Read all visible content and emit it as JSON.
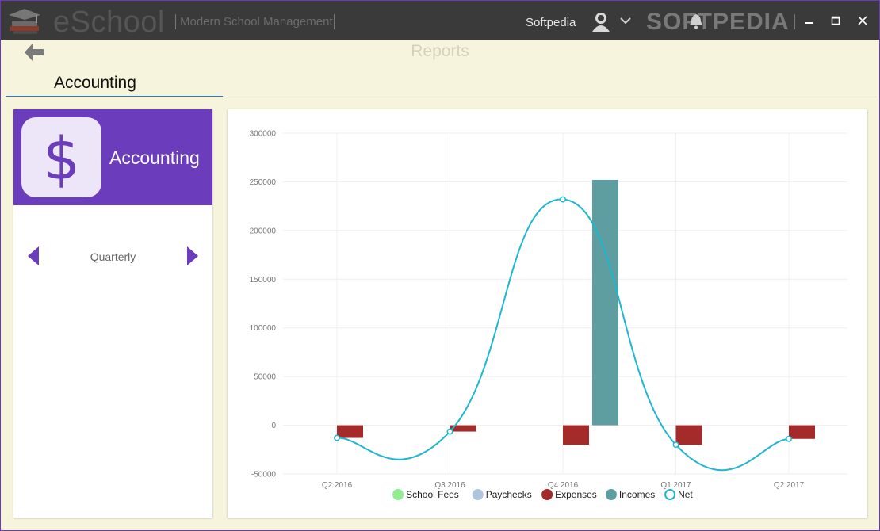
{
  "app": {
    "name": "eSchool",
    "subtitle": "Modern School Management",
    "user_name": "Softpedia",
    "watermark": "SOFTPEDIA"
  },
  "header": {
    "title": "Reports",
    "tab_label": "Accounting"
  },
  "card": {
    "title": "Accounting",
    "icon_glyph": "$",
    "period_label": "Quarterly"
  },
  "colors": {
    "accent": "#6b3cbc",
    "titlebar": "#3a3a3a",
    "tab_underline": "#2a7ac8",
    "school_fees": "#90ee90",
    "paychecks": "#b0c4de",
    "expenses": "#a52a2a",
    "incomes": "#5f9ea0",
    "net": "#1fb6d0"
  },
  "chart_data": {
    "type": "bar",
    "categories": [
      "Q2 2016",
      "Q3 2016",
      "Q4 2016",
      "Q1 2017",
      "Q2 2017"
    ],
    "ylim": [
      -50000,
      300000
    ],
    "yticks": [
      -50000,
      0,
      50000,
      100000,
      150000,
      200000,
      250000,
      300000
    ],
    "grid": true,
    "legend_position": "bottom",
    "series": [
      {
        "name": "School Fees",
        "type": "bar",
        "color": "#90ee90",
        "values": [
          0,
          0,
          0,
          0,
          0
        ]
      },
      {
        "name": "Paychecks",
        "type": "bar",
        "color": "#b0c4de",
        "values": [
          0,
          0,
          0,
          0,
          0
        ]
      },
      {
        "name": "Expenses",
        "type": "bar",
        "color": "#a52a2a",
        "values": [
          -13000,
          -6500,
          -20000,
          -20000,
          -14000
        ]
      },
      {
        "name": "Incomes",
        "type": "bar",
        "color": "#5f9ea0",
        "values": [
          0,
          0,
          252000,
          0,
          0
        ]
      },
      {
        "name": "Net",
        "type": "line",
        "color": "#1fb6d0",
        "values": [
          -13000,
          -6500,
          232000,
          -20000,
          -14000
        ]
      }
    ]
  }
}
